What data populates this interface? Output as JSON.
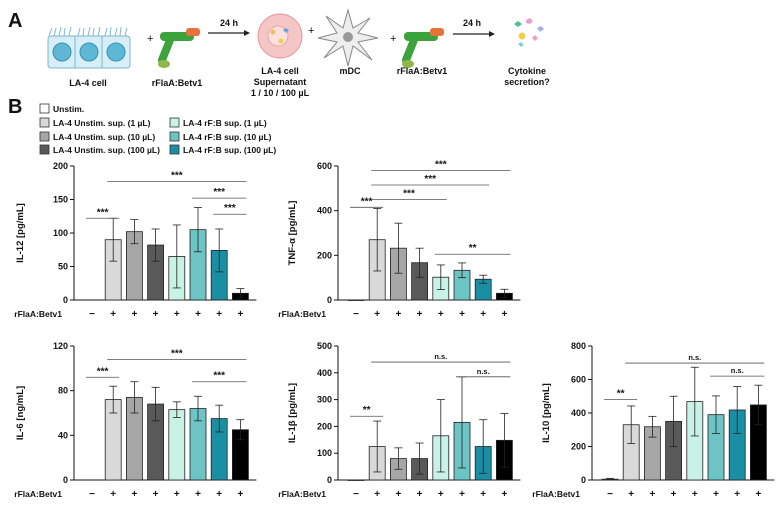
{
  "panel_a": {
    "label": "A",
    "lung_cell_label": "LA-4 cell",
    "allergen_label_1": "rFlaA:Betv1",
    "time_1": "24 h",
    "supernatant_label": [
      "LA-4 cell",
      "Supernatant",
      "1 / 10 / 100 µL"
    ],
    "plus": "+",
    "dc_label": "mDC",
    "allergen_label_2": "rFlaA:Betv1",
    "time_2": "24 h",
    "cytokine_label": [
      "Cytokine",
      "secretion?"
    ]
  },
  "panel_b": {
    "label": "B"
  },
  "legend": [
    {
      "name": "Unstim.",
      "color": "#ffffff"
    },
    {
      "name": "LA-4 Unstim. sup. (1 µL)",
      "color": "#d9d9d9"
    },
    {
      "name": "LA-4 Unstim. sup. (10 µL)",
      "color": "#a6a6a6"
    },
    {
      "name": "LA-4 Unstim. sup. (100 µL)",
      "color": "#595959"
    },
    {
      "name": "LA-4 rF:B sup. (1 µL)",
      "color": "#c9f2e6"
    },
    {
      "name": "LA-4 rF:B sup. (10 µL)",
      "color": "#6cc4c4"
    },
    {
      "name": "LA-4 rF:B sup. (100 µL)",
      "color": "#1a8fa3"
    }
  ],
  "chart_data": [
    {
      "type": "bar",
      "ylabel": "IL-12 [pg/mL]",
      "ylim": [
        0,
        200
      ],
      "yticks": [
        "0",
        "50",
        "100",
        "150",
        "200"
      ],
      "xlabel": "rFlaA:Betv1",
      "stim": [
        "−",
        "+",
        "+",
        "+",
        "+",
        "+",
        "+",
        "+"
      ],
      "values": [
        null,
        90,
        102,
        82,
        65,
        105,
        74,
        10
      ],
      "errors": [
        null,
        32,
        18,
        24,
        47,
        33,
        32,
        7
      ],
      "significance": [
        {
          "from": 0,
          "to": 1,
          "label": "***",
          "level": 122
        },
        {
          "from": 1,
          "to": 7,
          "label": "***",
          "level": 177
        },
        {
          "from": 5,
          "to": 7,
          "label": "***",
          "level": 152
        },
        {
          "from": 6,
          "to": 7,
          "label": "***",
          "level": 128
        }
      ]
    },
    {
      "type": "bar",
      "ylabel": "TNF-α [pg/mL]",
      "ylim": [
        0,
        600
      ],
      "yticks": [
        "0",
        "200",
        "400",
        "600"
      ],
      "xlabel": "rFlaA:Betv1",
      "stim": [
        "−",
        "+",
        "+",
        "+",
        "+",
        "+",
        "+",
        "+"
      ],
      "values": [
        0,
        270,
        232,
        167,
        102,
        133,
        93,
        30
      ],
      "errors": [
        0,
        140,
        112,
        65,
        55,
        33,
        18,
        18
      ],
      "significance": [
        {
          "from": 0,
          "to": 1,
          "label": "***",
          "level": 415
        },
        {
          "from": 1,
          "to": 7,
          "label": "***",
          "level": 580
        },
        {
          "from": 1,
          "to": 6,
          "label": "***",
          "level": 515
        },
        {
          "from": 1,
          "to": 4,
          "label": "***",
          "level": 450
        },
        {
          "from": 4,
          "to": 7,
          "label": "**",
          "level": 205
        }
      ]
    },
    {
      "type": "bar",
      "ylabel": "IL-6 [ng/mL]",
      "ylim": [
        0,
        120
      ],
      "yticks": [
        "0",
        "40",
        "80",
        "120"
      ],
      "xlabel": "rFlaA:Betv1",
      "stim": [
        "−",
        "+",
        "+",
        "+",
        "+",
        "+",
        "+",
        "+"
      ],
      "values": [
        null,
        72,
        74,
        68,
        63,
        64,
        55,
        45
      ],
      "errors": [
        null,
        12,
        14,
        15,
        7,
        11,
        12,
        9
      ],
      "significance": [
        {
          "from": 0,
          "to": 1,
          "label": "***",
          "level": 92
        },
        {
          "from": 1,
          "to": 7,
          "label": "***",
          "level": 108
        },
        {
          "from": 5,
          "to": 7,
          "label": "***",
          "level": 88
        }
      ]
    },
    {
      "type": "bar",
      "ylabel": "IL-1β [pg/mL]",
      "ylim": [
        0,
        500
      ],
      "yticks": [
        "0",
        "100",
        "200",
        "300",
        "400",
        "500"
      ],
      "xlabel": "rFlaA:Betv1",
      "stim": [
        "−",
        "+",
        "+",
        "+",
        "+",
        "+",
        "+",
        "+"
      ],
      "values": [
        0,
        125,
        80,
        80,
        165,
        215,
        125,
        148
      ],
      "errors": [
        0,
        95,
        40,
        58,
        135,
        170,
        100,
        100
      ],
      "significance": [
        {
          "from": 0,
          "to": 1,
          "label": "**",
          "level": 238
        },
        {
          "from": 1,
          "to": 7,
          "label": "n.s.",
          "level": 440
        },
        {
          "from": 5,
          "to": 7,
          "label": "n.s.",
          "level": 385
        }
      ]
    },
    {
      "type": "bar",
      "ylabel": "IL-10 [pg/mL]",
      "ylim": [
        0,
        800
      ],
      "yticks": [
        "0",
        "200",
        "400",
        "600",
        "800"
      ],
      "xlabel": "rFlaA:Betv1",
      "stim": [
        "−",
        "+",
        "+",
        "+",
        "+",
        "+",
        "+",
        "+"
      ],
      "values": [
        5,
        330,
        318,
        350,
        468,
        390,
        418,
        448
      ],
      "errors": [
        5,
        112,
        62,
        150,
        205,
        112,
        140,
        118
      ],
      "significance": [
        {
          "from": 0,
          "to": 1,
          "label": "**",
          "level": 480
        },
        {
          "from": 1,
          "to": 7,
          "label": "n.s.",
          "level": 698
        },
        {
          "from": 5,
          "to": 7,
          "label": "n.s.",
          "level": 620
        }
      ]
    }
  ]
}
